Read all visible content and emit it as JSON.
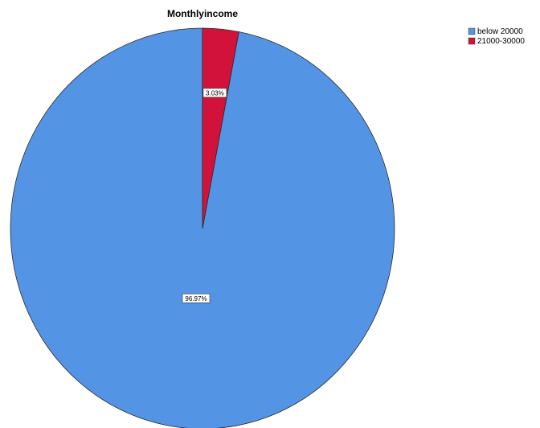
{
  "chart_data": {
    "type": "pie",
    "title": "Monthlyincome",
    "categories": [
      "below 20000",
      "21000-30000"
    ],
    "values": [
      96.97,
      3.03
    ],
    "labels": [
      "96.97%",
      "3.03%"
    ],
    "colors": [
      "#5494E4",
      "#D2123A"
    ],
    "legend_position": "top-right",
    "start": "12 o'clock",
    "direction": "counter-clockwise"
  }
}
